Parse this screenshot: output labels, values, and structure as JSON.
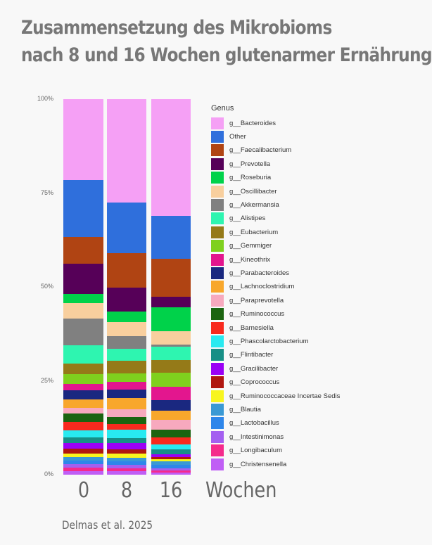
{
  "title_lines": [
    "Zusammensetzung des Mikrobioms",
    "nach 8 und 16 Wochen glutenarmer Ernährung"
  ],
  "citation": "Delmas et al. 2025",
  "chart_data": {
    "type": "bar",
    "stacked": true,
    "normalized": true,
    "categories": [
      "0",
      "8",
      "16"
    ],
    "xunit": "Wochen",
    "yticks": [
      "0%",
      "25%",
      "50%",
      "75%",
      "100%"
    ],
    "ylim": [
      0,
      100
    ],
    "legend_title": "Genus",
    "legend_position": "right",
    "series": [
      {
        "name": "g__Bacteroides",
        "color": "#f5a0f5",
        "values": [
          21.6,
          27.6,
          31.1
        ]
      },
      {
        "name": "Other",
        "color": "#2f6fdc",
        "values": [
          15.1,
          13.4,
          11.4
        ]
      },
      {
        "name": "g__Faecalibacterium",
        "color": "#b04413",
        "values": [
          7.1,
          9.1,
          10.1
        ]
      },
      {
        "name": "g__Prevotella",
        "color": "#560058",
        "values": [
          8.1,
          6.5,
          2.8
        ]
      },
      {
        "name": "g__Roseburia",
        "color": "#00d24a",
        "values": [
          2.5,
          2.7,
          6.4
        ]
      },
      {
        "name": "g__Oscillibacter",
        "color": "#f8cf9e",
        "values": [
          4.0,
          3.8,
          3.6
        ]
      },
      {
        "name": "g__Akkermansia",
        "color": "#808080",
        "values": [
          7.1,
          3.4,
          0.6
        ]
      },
      {
        "name": "g__Alistipes",
        "color": "#2ef5b0",
        "values": [
          4.9,
          3.1,
          3.5
        ]
      },
      {
        "name": "g__Eubacterium",
        "color": "#957a18",
        "values": [
          2.8,
          3.4,
          3.3
        ]
      },
      {
        "name": "g__Gemmiger",
        "color": "#7fd01e",
        "values": [
          2.6,
          2.2,
          3.8
        ]
      },
      {
        "name": "g__Kineothrix",
        "color": "#e3168e",
        "values": [
          1.8,
          2.2,
          3.5
        ]
      },
      {
        "name": "g__Parabacteroides",
        "color": "#1a2880",
        "values": [
          2.3,
          2.2,
          2.9
        ]
      },
      {
        "name": "g__Lachnoclostridium",
        "color": "#f8a72c",
        "values": [
          2.3,
          2.9,
          2.3
        ]
      },
      {
        "name": "g__Paraprevotella",
        "color": "#f7a9be",
        "values": [
          1.6,
          2.2,
          2.8
        ]
      },
      {
        "name": "g__Ruminococcus",
        "color": "#1b6410",
        "values": [
          2.2,
          1.9,
          2.0
        ]
      },
      {
        "name": "g__Barnesiella",
        "color": "#f82a1e",
        "values": [
          2.2,
          1.5,
          1.9
        ]
      },
      {
        "name": "g__Phascolarctobacterium",
        "color": "#28eaf0",
        "values": [
          1.8,
          2.1,
          1.3
        ]
      },
      {
        "name": "g__Flintibacter",
        "color": "#178f86",
        "values": [
          1.6,
          1.4,
          1.3
        ]
      },
      {
        "name": "g__Gracilibacter",
        "color": "#9a00f5",
        "values": [
          1.4,
          1.7,
          0.7
        ]
      },
      {
        "name": "g__Coprococcus",
        "color": "#b0160f",
        "values": [
          1.3,
          1.1,
          0.5
        ]
      },
      {
        "name": "g__Ruminococcaceae Incertae Sedis",
        "color": "#f8f51e",
        "values": [
          1.1,
          1.1,
          0.6
        ]
      },
      {
        "name": "g__Blautia",
        "color": "#3a99d4",
        "values": [
          0.9,
          0.9,
          0.9
        ]
      },
      {
        "name": "g__Lactobacillus",
        "color": "#2e86ea",
        "values": [
          0.8,
          1.0,
          1.1
        ]
      },
      {
        "name": "g__Intestinimonas",
        "color": "#a45ff0",
        "values": [
          1.0,
          1.0,
          0.4
        ]
      },
      {
        "name": "g__Longibaculum",
        "color": "#f52a8c",
        "values": [
          1.0,
          0.7,
          0.7
        ]
      },
      {
        "name": "g__Christensenella",
        "color": "#c05ef5",
        "values": [
          0.9,
          0.9,
          0.5
        ]
      }
    ]
  }
}
